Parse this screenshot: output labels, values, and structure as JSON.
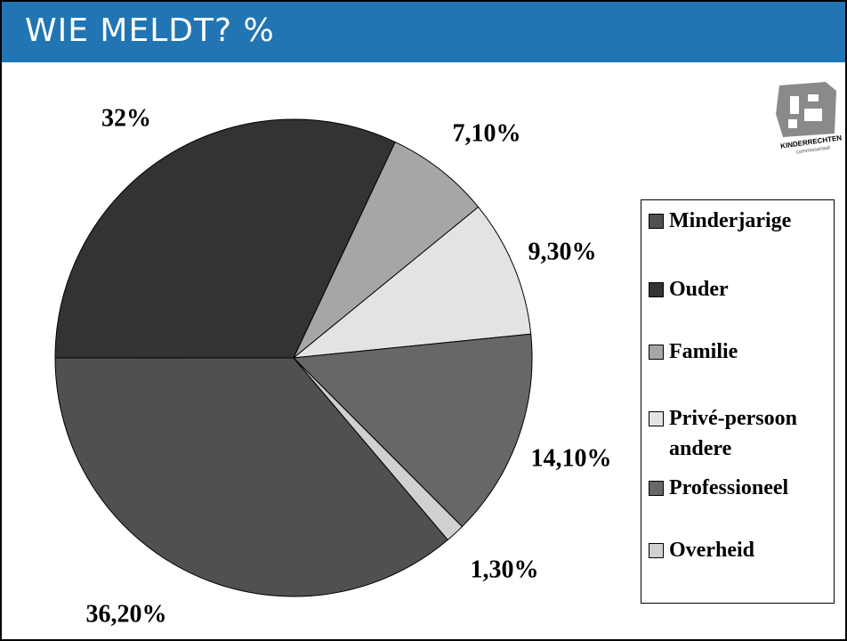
{
  "title": "WIE MELDT? %",
  "logo": {
    "line1": "KINDERRECHTEN",
    "line2": "commissariaat"
  },
  "chart_data": {
    "type": "pie",
    "categories": [
      "Minderjarige",
      "Ouder",
      "Familie",
      "Privé-persoon andere",
      "Professioneel",
      "Overheid"
    ],
    "values": [
      36.2,
      32,
      7.1,
      9.3,
      14.1,
      1.3
    ],
    "value_labels": [
      "36,20%",
      "32%",
      "7,10%",
      "9,30%",
      "14,10%",
      "1,30%"
    ],
    "colors": [
      "#505050",
      "#333333",
      "#a6a6a6",
      "#e3e3e3",
      "#676767",
      "#d0d0d0"
    ],
    "legend": "right"
  }
}
